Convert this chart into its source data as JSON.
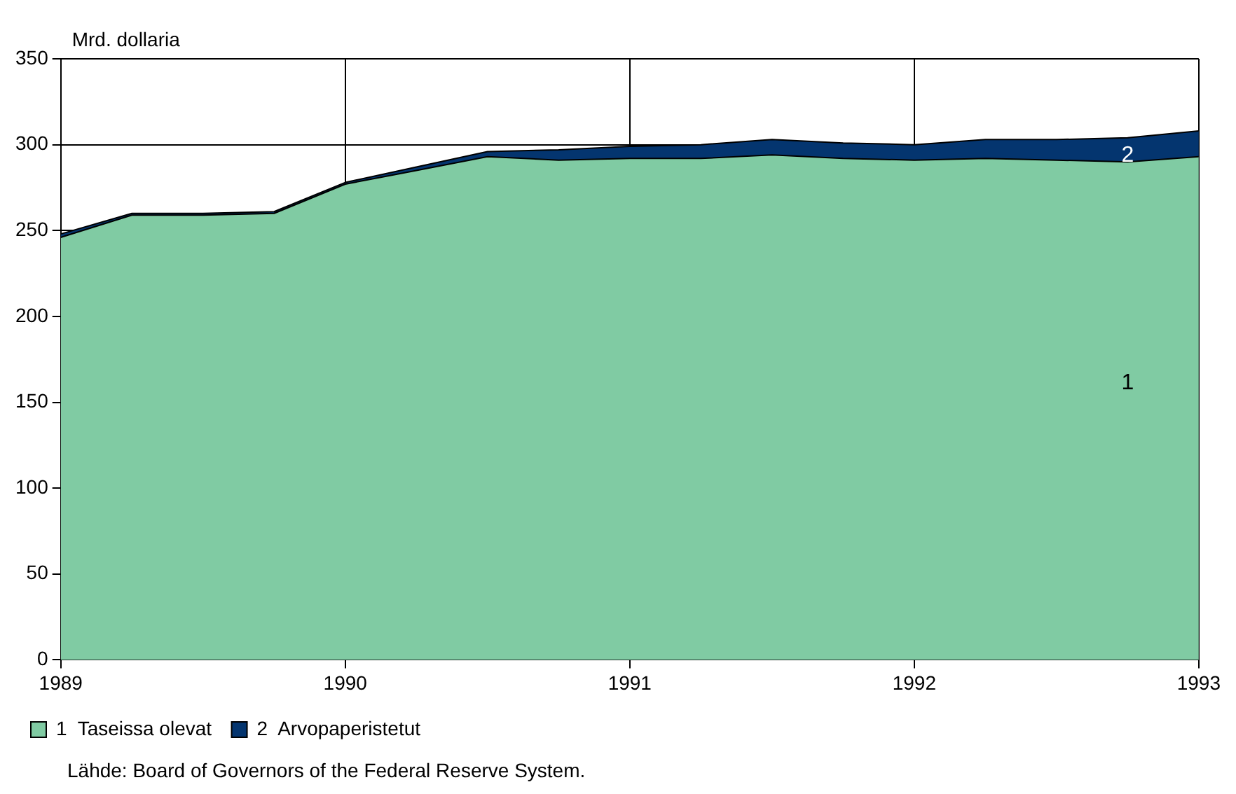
{
  "chart_data": {
    "type": "area",
    "stacked": true,
    "ylabel": "Mrd. dollaria",
    "x": [
      1989,
      1989.25,
      1989.5,
      1989.75,
      1990,
      1990.25,
      1990.5,
      1990.75,
      1991,
      1991.25,
      1991.5,
      1991.75,
      1992,
      1992.25,
      1992.5,
      1992.75,
      1993
    ],
    "series": [
      {
        "name": "1  Taseissa olevat",
        "color": "#80cba3",
        "values": [
          246,
          259,
          259,
          260,
          277,
          285,
          293,
          291,
          292,
          292,
          294,
          292,
          291,
          292,
          291,
          290,
          293
        ]
      },
      {
        "name": "2  Arvopaperistetut",
        "color": "#04356f",
        "values": [
          2,
          1,
          1,
          1,
          1,
          2,
          3,
          6,
          7,
          8,
          9,
          9,
          9,
          11,
          12,
          14,
          15
        ]
      }
    ],
    "xlim": [
      1989,
      1993
    ],
    "xticks": [
      1989,
      1990,
      1991,
      1992,
      1993
    ],
    "ylim": [
      0,
      350
    ],
    "yticks": [
      0,
      50,
      100,
      150,
      200,
      250,
      300,
      350
    ],
    "grid": true,
    "legend": "bottom left",
    "annotations": [
      "1",
      "2",
      "Lähde: Board of Governors of the Federal Reserve System."
    ]
  }
}
